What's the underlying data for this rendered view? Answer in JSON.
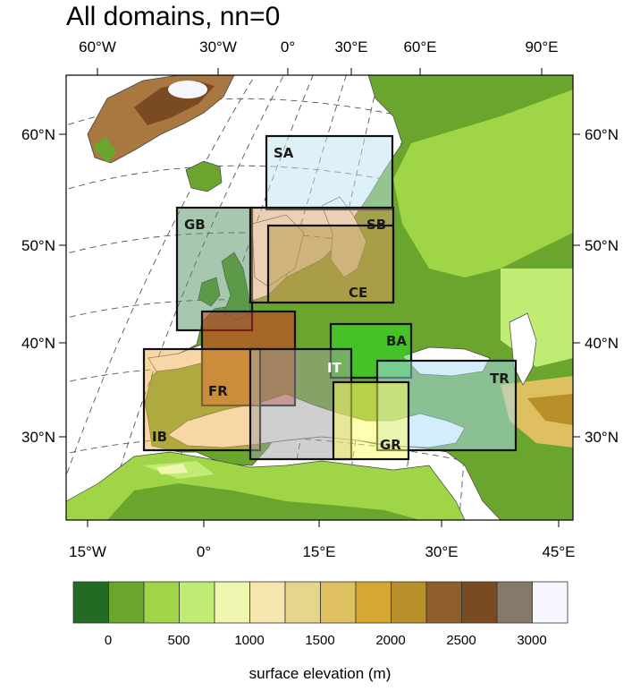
{
  "title": "All domains, nn=0",
  "top_lon_labels": [
    "60°W",
    "30°W",
    "0°",
    "30°E",
    "60°E",
    "90°E"
  ],
  "bottom_lon_labels": [
    "15°W",
    "0°",
    "15°E",
    "30°E",
    "45°E"
  ],
  "lat_labels": [
    "60°N",
    "50°N",
    "40°N",
    "30°N"
  ],
  "domains": [
    {
      "label": "SA",
      "fill": "#bde3f2"
    },
    {
      "label": "GB",
      "fill": "#4f8f5f"
    },
    {
      "label": "SB",
      "fill": "#d9a070"
    },
    {
      "label": "CE",
      "fill": "#b09a40"
    },
    {
      "label": "FR",
      "fill": "#e02c20"
    },
    {
      "label": "IB",
      "fill": "#f2b050"
    },
    {
      "label": "BA",
      "fill": "#22dd22"
    },
    {
      "label": "IT",
      "fill": "#a0a0a0"
    },
    {
      "label": "TR",
      "fill": "#aadcf5"
    },
    {
      "label": "GR",
      "fill": "#ffff66"
    }
  ],
  "colorbar": {
    "colors": [
      "#236a25",
      "#6aa52e",
      "#9fd546",
      "#c0ec74",
      "#f0f5b0",
      "#f5e6b0",
      "#e8d58c",
      "#dfc060",
      "#d6a831",
      "#b8902a",
      "#8e5e2c",
      "#7a4a22",
      "#87796a",
      "#f6f6fe"
    ],
    "labels": [
      "0",
      "500",
      "1000",
      "1500",
      "2000",
      "2500",
      "3000"
    ]
  },
  "legend_title": "surface elevation (m)"
}
